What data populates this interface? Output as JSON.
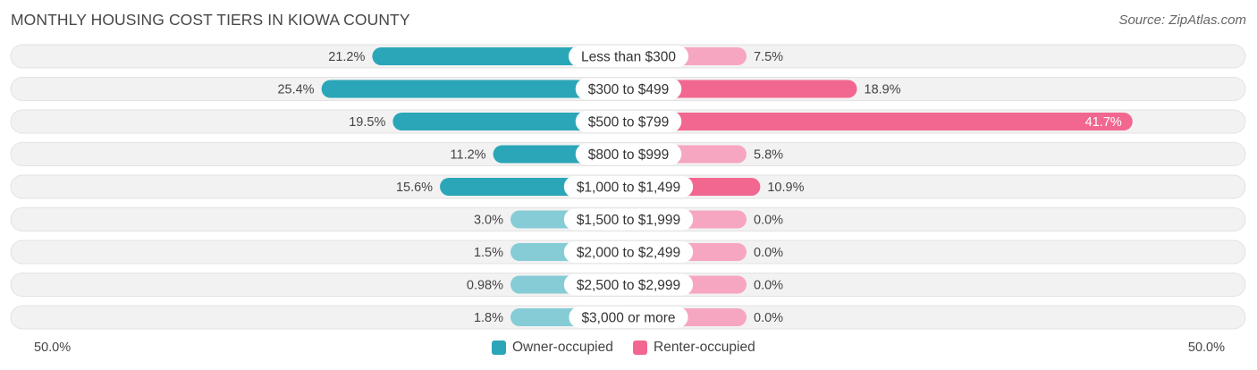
{
  "title": "MONTHLY HOUSING COST TIERS IN KIOWA COUNTY",
  "source": "Source: ZipAtlas.com",
  "colors": {
    "owner_strong": "#2ba6b8",
    "owner_light": "#86ccd6",
    "renter_strong": "#f2678f",
    "renter_light": "#f6a6c0",
    "row_bg": "#f2f2f2",
    "row_border": "#e3e3e3"
  },
  "chart_data": {
    "type": "bar",
    "orientation": "diverging-horizontal",
    "categories": [
      "Less than $300",
      "$300 to $499",
      "$500 to $799",
      "$800 to $999",
      "$1,000 to $1,499",
      "$1,500 to $1,999",
      "$2,000 to $2,499",
      "$2,500 to $2,999",
      "$3,000 or more"
    ],
    "series": [
      {
        "name": "Owner-occupied",
        "values": [
          21.2,
          25.4,
          19.5,
          11.2,
          15.6,
          3.0,
          1.5,
          0.98,
          1.8
        ],
        "labels": [
          "21.2%",
          "25.4%",
          "19.5%",
          "11.2%",
          "15.6%",
          "3.0%",
          "1.5%",
          "0.98%",
          "1.8%"
        ]
      },
      {
        "name": "Renter-occupied",
        "values": [
          7.5,
          18.9,
          41.7,
          5.8,
          10.9,
          0.0,
          0.0,
          0.0,
          0.0
        ],
        "labels": [
          "7.5%",
          "18.9%",
          "41.7%",
          "5.8%",
          "10.9%",
          "0.0%",
          "0.0%",
          "0.0%",
          "0.0%"
        ]
      }
    ],
    "xlim": [
      -50,
      50
    ],
    "axis_left_label": "50.0%",
    "axis_right_label": "50.0%",
    "legend_position": "bottom-center"
  }
}
